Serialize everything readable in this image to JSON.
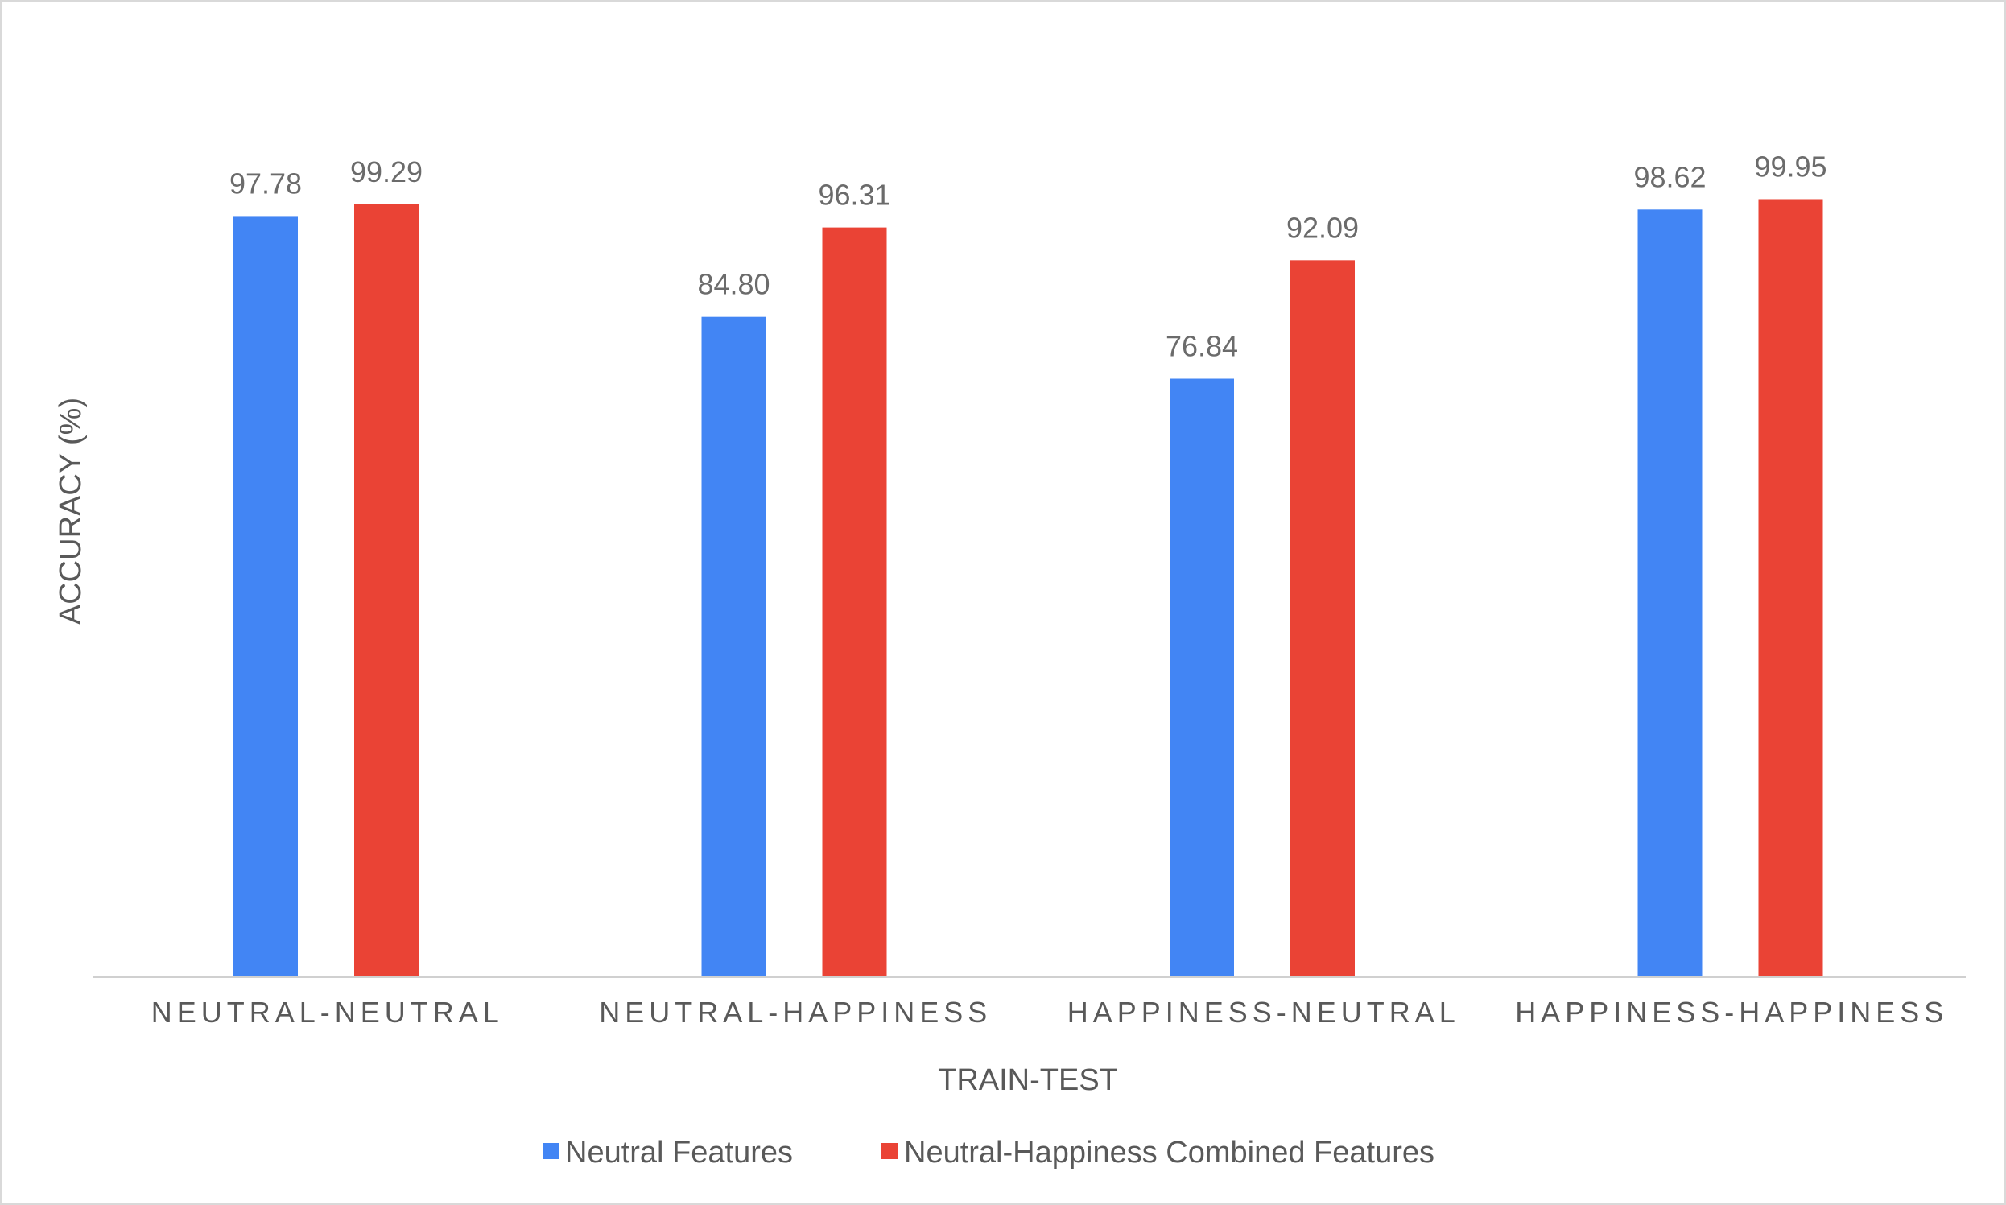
{
  "chart_data": {
    "type": "bar",
    "categories": [
      "NEUTRAL-NEUTRAL",
      "NEUTRAL-HAPPINESS",
      "HAPPINESS-NEUTRAL",
      "HAPPINESS-HAPPINESS"
    ],
    "series": [
      {
        "name": "Neutral Features",
        "color": "#4285f4",
        "values": [
          97.78,
          84.8,
          76.84,
          98.62
        ],
        "labels": [
          "97.78",
          "84.80",
          "76.84",
          "98.62"
        ]
      },
      {
        "name": "Neutral-Happiness Combined Features",
        "color": "#ea4335",
        "values": [
          99.29,
          96.31,
          92.09,
          99.95
        ],
        "labels": [
          "99.29",
          "96.31",
          "92.09",
          "99.95"
        ]
      }
    ],
    "title": "",
    "xlabel": "TRAIN-TEST",
    "ylabel": "ACCURACY (%)",
    "ylim": [
      0,
      100
    ],
    "grid": false,
    "legend": "bottom"
  }
}
